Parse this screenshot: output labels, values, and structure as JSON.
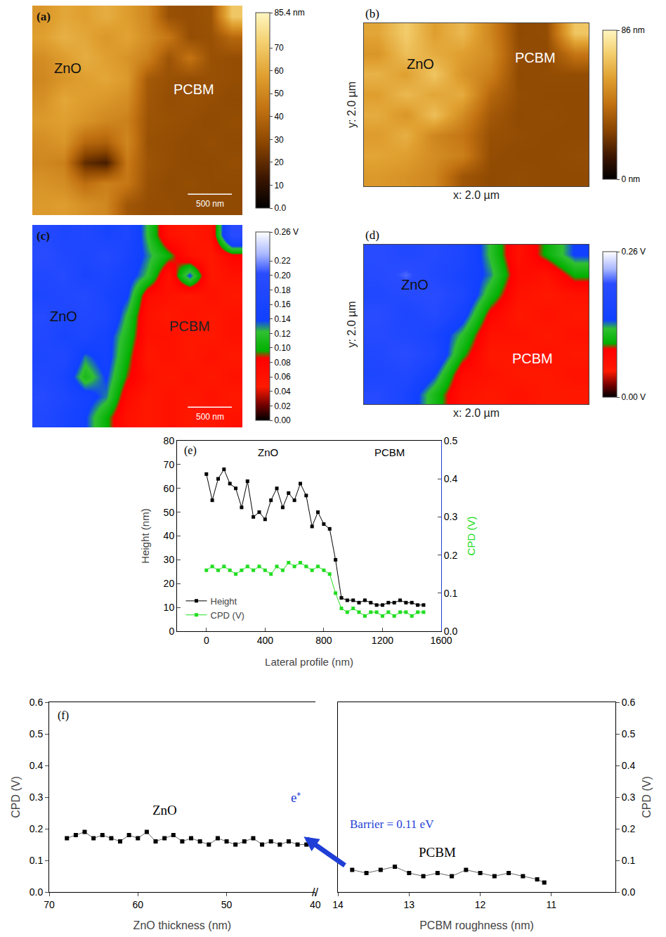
{
  "chart_data": [
    {
      "type": "heatmap",
      "title": "(a)",
      "tick_labels": false,
      "scale_bar": "500 nm",
      "z": [
        [
          55,
          60,
          58,
          62,
          57,
          50,
          32,
          31,
          33,
          70
        ],
        [
          58,
          63,
          60,
          55,
          59,
          52,
          45,
          31,
          32,
          40
        ],
        [
          52,
          57,
          62,
          58,
          54,
          48,
          33,
          44,
          32,
          31
        ],
        [
          50,
          55,
          58,
          60,
          56,
          35,
          32,
          31,
          32,
          31
        ],
        [
          53,
          60,
          57,
          55,
          52,
          34,
          31,
          32,
          31,
          30
        ],
        [
          56,
          58,
          54,
          50,
          48,
          33,
          32,
          31,
          30,
          31
        ],
        [
          52,
          55,
          40,
          38,
          50,
          32,
          31,
          30,
          31,
          30
        ],
        [
          50,
          48,
          20,
          15,
          46,
          33,
          31,
          30,
          30,
          31
        ],
        [
          54,
          52,
          42,
          48,
          45,
          32,
          30,
          31,
          30,
          30
        ],
        [
          56,
          57,
          53,
          50,
          34,
          31,
          31,
          30,
          30,
          30
        ]
      ],
      "zlim": [
        0,
        85.4
      ],
      "zticks": [
        {
          "value": 0,
          "label": "0.0"
        },
        10,
        20,
        30,
        40,
        50,
        60,
        70,
        {
          "value": 85.4,
          "label": "85.4 nm"
        }
      ],
      "annotations": [
        {
          "text": "ZnO",
          "x": 1.2,
          "y": 2.5,
          "color": "#111111"
        },
        {
          "text": "PCBM",
          "x": 7.2,
          "y": 3.5,
          "color": "#ffffff"
        }
      ]
    },
    {
      "type": "heatmap",
      "title": "(b)",
      "tick_labels": false,
      "xlabel": "x: 2.0 µm",
      "ylabel": "y: 2.0 µm",
      "z": [
        [
          60,
          72,
          58,
          66,
          50,
          30,
          31,
          70
        ],
        [
          55,
          68,
          62,
          58,
          52,
          31,
          30,
          45
        ],
        [
          64,
          58,
          70,
          55,
          48,
          30,
          31,
          31
        ],
        [
          58,
          66,
          60,
          62,
          40,
          31,
          30,
          30
        ],
        [
          62,
          55,
          68,
          52,
          35,
          30,
          31,
          30
        ],
        [
          57,
          63,
          50,
          45,
          32,
          31,
          30,
          30
        ],
        [
          60,
          58,
          52,
          48,
          31,
          30,
          30,
          31
        ],
        [
          56,
          54,
          50,
          34,
          30,
          31,
          30,
          30
        ]
      ],
      "zlim": [
        0,
        86
      ],
      "zticks": [
        {
          "value": 0,
          "label": "0 nm"
        },
        {
          "value": 86,
          "label": "86 nm"
        }
      ],
      "annotations": [
        {
          "text": "ZnO",
          "x": 1.5,
          "y": 1.5,
          "color": "#111111"
        },
        {
          "text": "PCBM",
          "x": 5.6,
          "y": 1.2,
          "color": "#ffffff"
        }
      ]
    },
    {
      "type": "heatmap",
      "title": "(c)",
      "tick_labels": false,
      "scale_bar": "500 nm",
      "z": [
        [
          0.19,
          0.17,
          0.18,
          0.16,
          0.17,
          0.12,
          0.06,
          0.05,
          0.06,
          0.2
        ],
        [
          0.2,
          0.18,
          0.17,
          0.19,
          0.16,
          0.13,
          0.1,
          0.06,
          0.05,
          0.08
        ],
        [
          0.18,
          0.19,
          0.16,
          0.17,
          0.15,
          0.12,
          0.06,
          0.14,
          0.05,
          0.06
        ],
        [
          0.17,
          0.18,
          0.19,
          0.16,
          0.14,
          0.07,
          0.06,
          0.05,
          0.06,
          0.05
        ],
        [
          0.19,
          0.17,
          0.18,
          0.17,
          0.12,
          0.06,
          0.05,
          0.06,
          0.05,
          0.06
        ],
        [
          0.18,
          0.16,
          0.17,
          0.15,
          0.11,
          0.06,
          0.06,
          0.05,
          0.05,
          0.06
        ],
        [
          0.17,
          0.18,
          0.13,
          0.15,
          0.1,
          0.05,
          0.06,
          0.05,
          0.06,
          0.05
        ],
        [
          0.18,
          0.16,
          0.11,
          0.14,
          0.09,
          0.06,
          0.05,
          0.06,
          0.05,
          0.06
        ],
        [
          0.19,
          0.17,
          0.15,
          0.13,
          0.07,
          0.05,
          0.06,
          0.05,
          0.06,
          0.05
        ],
        [
          0.18,
          0.16,
          0.14,
          0.1,
          0.06,
          0.05,
          0.06,
          0.05,
          0.05,
          0.06
        ]
      ],
      "zlim": [
        0,
        0.26
      ],
      "zticks": [
        {
          "value": 0,
          "label": "0.00"
        },
        0.02,
        0.04,
        0.06,
        0.08,
        {
          "value": 0.1,
          "label": "0.10"
        },
        0.12,
        0.14,
        0.16,
        0.18,
        {
          "value": 0.2,
          "label": "0.20"
        },
        0.22,
        {
          "value": 0.26,
          "label": "0.26 V"
        }
      ],
      "annotations": [
        {
          "text": "ZnO",
          "x": 1,
          "y": 4,
          "color": "#111111"
        },
        {
          "text": "PCBM",
          "x": 7,
          "y": 4.5,
          "color": "#222222"
        }
      ]
    },
    {
      "type": "heatmap",
      "title": "(d)",
      "tick_labels": false,
      "xlabel": "x: 2.0 µm",
      "ylabel": "y: 2.0 µm",
      "z": [
        [
          0.2,
          0.18,
          0.19,
          0.17,
          0.12,
          0.06,
          0.1,
          0.14
        ],
        [
          0.19,
          0.21,
          0.18,
          0.16,
          0.13,
          0.07,
          0.06,
          0.1
        ],
        [
          0.18,
          0.19,
          0.2,
          0.17,
          0.11,
          0.06,
          0.05,
          0.06
        ],
        [
          0.2,
          0.17,
          0.19,
          0.15,
          0.08,
          0.05,
          0.06,
          0.05
        ],
        [
          0.19,
          0.18,
          0.16,
          0.12,
          0.06,
          0.06,
          0.05,
          0.06
        ],
        [
          0.18,
          0.2,
          0.17,
          0.1,
          0.05,
          0.05,
          0.06,
          0.05
        ],
        [
          0.17,
          0.18,
          0.14,
          0.07,
          0.06,
          0.05,
          0.05,
          0.06
        ],
        [
          0.19,
          0.16,
          0.11,
          0.06,
          0.05,
          0.06,
          0.05,
          0.05
        ]
      ],
      "zlim": [
        0,
        0.26
      ],
      "zticks": [
        {
          "value": 0,
          "label": "0.00 V"
        },
        {
          "value": 0.26,
          "label": "0.26 V"
        }
      ],
      "annotations": [
        {
          "text": "ZnO",
          "x": 1.3,
          "y": 1.5,
          "color": "#111111"
        },
        {
          "text": "PCBM",
          "x": 5.5,
          "y": 5.2,
          "color": "#ffffff"
        }
      ]
    },
    {
      "type": "line",
      "title": "(e)",
      "grid": false,
      "legend": "lower left",
      "xlabel": "Lateral profile (nm)",
      "ylabel": "Height (nm)",
      "y2label": "CPD (V)",
      "x": [
        0,
        40,
        80,
        120,
        160,
        200,
        240,
        280,
        320,
        360,
        400,
        440,
        480,
        520,
        560,
        600,
        640,
        680,
        720,
        760,
        800,
        840,
        880,
        920,
        960,
        1000,
        1040,
        1080,
        1120,
        1160,
        1200,
        1240,
        1280,
        1320,
        1360,
        1400,
        1440,
        1480
      ],
      "series": [
        {
          "name": "Height",
          "color": "#000000",
          "marker": "square",
          "values": [
            66,
            55,
            64,
            68,
            62,
            60,
            52,
            63,
            48,
            50,
            47,
            55,
            60,
            52,
            58,
            55,
            62,
            57,
            44,
            50,
            45,
            43,
            30,
            14,
            13,
            13,
            12,
            13,
            12,
            11,
            11,
            12,
            12,
            13,
            12,
            12,
            11,
            11
          ]
        },
        {
          "name": "CPD (V)",
          "color": "#22dd22",
          "marker": "square",
          "axis": "y2",
          "values": [
            0.16,
            0.17,
            0.16,
            0.17,
            0.16,
            0.15,
            0.16,
            0.17,
            0.16,
            0.17,
            0.16,
            0.15,
            0.17,
            0.16,
            0.18,
            0.17,
            0.18,
            0.17,
            0.16,
            0.17,
            0.16,
            0.15,
            0.1,
            0.06,
            0.05,
            0.06,
            0.05,
            0.04,
            0.05,
            0.05,
            0.04,
            0.05,
            0.04,
            0.05,
            0.05,
            0.04,
            0.05,
            0.05
          ]
        }
      ],
      "xlim": [
        -200,
        1600
      ],
      "xticks": [
        0,
        400,
        800,
        1200,
        1600
      ],
      "ylim": [
        0,
        80
      ],
      "yticks": [
        0,
        10,
        20,
        30,
        40,
        50,
        60,
        70,
        80
      ],
      "y2lim": [
        0,
        0.5
      ],
      "y2ticks": [
        {
          "value": 0,
          "label": "0.0"
        },
        0.1,
        0.2,
        0.3,
        0.4,
        0.5
      ],
      "annotations": [
        {
          "text": "ZnO",
          "x": 420,
          "y": 75
        },
        {
          "text": "PCBM",
          "x": 1250,
          "y": 75
        }
      ]
    },
    {
      "type": "scatter",
      "title": "(f)",
      "grid": false,
      "marker": "square",
      "color": "#000000",
      "ylabel": "CPD (V)",
      "ylim": [
        0,
        0.6
      ],
      "yticks": [
        {
          "value": 0,
          "label": "0.0"
        },
        0.1,
        0.2,
        0.3,
        0.4,
        0.5,
        0.6
      ],
      "break_mark": "//",
      "panels": [
        {
          "xlabel": "ZnO thickness (nm)",
          "xlim": [
            70,
            40
          ],
          "xticks": [
            70,
            60,
            50,
            40
          ],
          "x": [
            68,
            67,
            66,
            65,
            64,
            63,
            62,
            61,
            60,
            59,
            58,
            57,
            56,
            55,
            54,
            53,
            52,
            51,
            50,
            49,
            48,
            47,
            46,
            45,
            44,
            43,
            42,
            41
          ],
          "values": [
            0.17,
            0.18,
            0.19,
            0.17,
            0.18,
            0.17,
            0.16,
            0.18,
            0.17,
            0.19,
            0.16,
            0.17,
            0.18,
            0.16,
            0.17,
            0.16,
            0.15,
            0.17,
            0.16,
            0.15,
            0.16,
            0.17,
            0.15,
            0.16,
            0.15,
            0.16,
            0.15,
            0.15
          ],
          "annotations": [
            {
              "text": "ZnO",
              "x": 57,
              "y": 0.26
            }
          ]
        },
        {
          "xlabel": "PCBM roughness (nm)",
          "xlim": [
            14,
            10.1
          ],
          "xticks": [
            14,
            13,
            12,
            11
          ],
          "x": [
            13.8,
            13.6,
            13.4,
            13.2,
            13.0,
            12.8,
            12.6,
            12.4,
            12.2,
            12.0,
            11.8,
            11.6,
            11.4,
            11.2,
            11.1
          ],
          "values": [
            0.07,
            0.06,
            0.07,
            0.08,
            0.06,
            0.05,
            0.06,
            0.05,
            0.07,
            0.06,
            0.05,
            0.06,
            0.05,
            0.04,
            0.03
          ],
          "annotations": [
            {
              "text": "PCBM",
              "x": 12.6,
              "y": 0.125
            }
          ]
        }
      ],
      "arrow": {
        "text": "e⁺",
        "label": "Barrier = 0.11 eV",
        "color": "#1f3fd6"
      }
    }
  ]
}
